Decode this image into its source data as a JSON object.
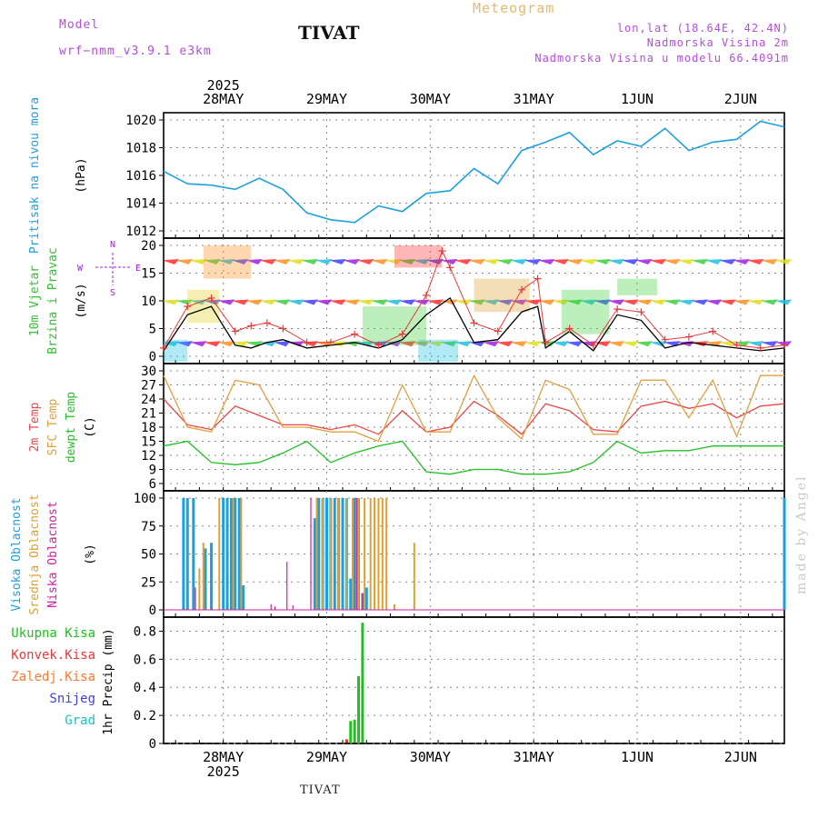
{
  "header": {
    "model_label": "Model",
    "model_name": "wrf−nmm_v3.9.1  e3km",
    "title": "TIVAT",
    "meteogram": "Meteogram",
    "lonlat": "lon,lat (18.64E, 42.4N)",
    "altitude": "Nadmorska Visina 2m",
    "model_altitude": "Nadmorska Visina u modelu 66.4091m"
  },
  "footer": {
    "station": "TIVAT",
    "watermark": "made by Angel"
  },
  "colors": {
    "pressure": "#1ea0e0",
    "wind_speed": "#000000",
    "wind_gust": "#e83a3a",
    "temp2m": "#e84848",
    "sfc_temp": "#e0a040",
    "dewpt": "#20c020",
    "high_cloud": "#1aa0e0",
    "mid_cloud": "#e0a030",
    "low_cloud": "#d020a0",
    "precip_total": "#20c020",
    "precip_conv": "#e83a3a",
    "precip_frz": "#ff7a30",
    "precip_snow": "#4040e0",
    "precip_grad": "#20c0c0"
  },
  "chart_data": [
    {
      "type": "line",
      "id": "pressure",
      "ylabel": "Pritisak na nivou mora",
      "unit": "(hPa)",
      "ylim": [
        1012,
        1020
      ],
      "yticks": [
        "1012",
        "1014",
        "1016",
        "1018",
        "1020"
      ],
      "x_top_labels": [
        "28MAY",
        "29MAY",
        "30MAY",
        "31MAY",
        "1JUN",
        "2JUN"
      ],
      "year": "2025",
      "x": [
        0,
        6,
        12,
        18,
        24,
        30,
        36,
        42,
        48,
        54,
        60,
        66,
        72,
        78,
        84,
        90,
        96,
        102,
        108,
        114,
        120,
        126,
        132,
        138,
        144,
        150,
        156
      ],
      "values": [
        1016.3,
        1015.4,
        1015.3,
        1015.0,
        1015.8,
        1015.0,
        1013.3,
        1012.8,
        1012.6,
        1013.8,
        1013.4,
        1014.7,
        1014.9,
        1016.5,
        1015.4,
        1017.8,
        1018.4,
        1019.1,
        1017.5,
        1018.5,
        1018.1,
        1019.4,
        1017.8,
        1018.4,
        1018.6,
        1019.9,
        1019.5
      ]
    },
    {
      "type": "line",
      "id": "wind",
      "ylabel": "10m Vjetar",
      "ylabel2": "Brzina i Pravac",
      "unit": "(m/s)",
      "ylim": [
        0,
        20
      ],
      "yticks": [
        "0",
        "5",
        "10",
        "15",
        "20"
      ],
      "compass": [
        "N",
        "E",
        "S",
        "W"
      ],
      "series": [
        {
          "name": "speed",
          "x": [
            0,
            6,
            12,
            18,
            22,
            26,
            30,
            36,
            42,
            48,
            54,
            60,
            66,
            72,
            78,
            84,
            90,
            94,
            96,
            102,
            108,
            114,
            120,
            126,
            132,
            138,
            144,
            150,
            156
          ],
          "values": [
            1.0,
            7.5,
            9.0,
            2.0,
            1.5,
            2.5,
            3.0,
            1.5,
            2.0,
            2.5,
            1.5,
            3.0,
            7.5,
            10.5,
            2.5,
            3.0,
            8.0,
            9.0,
            1.5,
            4.5,
            1.0,
            7.5,
            6.5,
            1.5,
            2.5,
            2.0,
            1.5,
            1.0,
            1.5
          ]
        },
        {
          "name": "gust",
          "x": [
            0,
            6,
            12,
            18,
            22,
            26,
            30,
            36,
            42,
            48,
            54,
            60,
            66,
            70,
            72,
            78,
            84,
            90,
            94,
            96,
            102,
            108,
            114,
            120,
            126,
            132,
            138,
            144,
            150,
            156
          ],
          "values": [
            1.5,
            9.0,
            10.5,
            4.5,
            5.5,
            6.0,
            5.0,
            2.5,
            2.5,
            4.0,
            2.0,
            4.0,
            11.0,
            19.0,
            16.0,
            6.0,
            4.5,
            12.0,
            14.0,
            2.5,
            5.0,
            2.0,
            8.5,
            8.0,
            3.0,
            3.5,
            4.5,
            2.0,
            1.5,
            2.0
          ]
        }
      ]
    },
    {
      "type": "line",
      "id": "temperature",
      "ylabel": "2m Temp",
      "ylabel2": "SFC Temp",
      "ylabel3": "dewpt Temp",
      "unit": "(C)",
      "ylim": [
        6,
        30
      ],
      "yticks": [
        "6",
        "9",
        "12",
        "15",
        "18",
        "21",
        "24",
        "27",
        "30"
      ],
      "series": [
        {
          "name": "2m Temp",
          "x": [
            0,
            6,
            12,
            18,
            24,
            30,
            36,
            42,
            48,
            54,
            60,
            66,
            72,
            78,
            84,
            90,
            96,
            102,
            108,
            114,
            120,
            126,
            132,
            138,
            144,
            150,
            156
          ],
          "values": [
            24,
            18.5,
            17.5,
            22.5,
            20.5,
            18.5,
            18.5,
            17.5,
            18.5,
            16.5,
            21.5,
            17,
            18,
            23.5,
            20.5,
            16.5,
            23,
            21.5,
            17.5,
            17,
            22.5,
            23.5,
            22,
            23,
            20,
            22.5,
            23
          ]
        },
        {
          "name": "SFC Temp",
          "x": [
            0,
            6,
            12,
            18,
            24,
            30,
            36,
            42,
            48,
            54,
            60,
            66,
            72,
            78,
            84,
            90,
            96,
            102,
            108,
            114,
            120,
            126,
            132,
            138,
            144,
            150,
            156
          ],
          "values": [
            29,
            18,
            17,
            28,
            27,
            18,
            18,
            17,
            17,
            15,
            27,
            17,
            17,
            29,
            20,
            15.5,
            28,
            26,
            16.5,
            16.5,
            28,
            28,
            20,
            28,
            16,
            29,
            29
          ]
        },
        {
          "name": "dewpt Temp",
          "x": [
            0,
            6,
            12,
            18,
            24,
            30,
            36,
            42,
            48,
            54,
            60,
            66,
            72,
            78,
            84,
            90,
            96,
            102,
            108,
            114,
            120,
            126,
            132,
            138,
            144,
            150,
            156
          ],
          "values": [
            14,
            15,
            10.5,
            10,
            10.5,
            12.5,
            15,
            10.5,
            12.5,
            14,
            15,
            8.5,
            8,
            9,
            9,
            8,
            8,
            8.5,
            10.5,
            15,
            12.5,
            13,
            13,
            14,
            14,
            14,
            14
          ]
        }
      ]
    },
    {
      "type": "bar",
      "id": "clouds",
      "ylabel": "Visoka Oblacnost",
      "ylabel2": "Srednja Oblacnost",
      "ylabel3": "Niska Oblacnost",
      "unit": "(%)",
      "ylim": [
        0,
        100
      ],
      "yticks": [
        "0",
        "25",
        "50",
        "75",
        "100"
      ],
      "series": [
        {
          "name": "high",
          "x": [
            5,
            6,
            7.5,
            10.5,
            12,
            15,
            16,
            17,
            18,
            19,
            20,
            38,
            39,
            40,
            41,
            42,
            43,
            44,
            45,
            46,
            47,
            48,
            49,
            50,
            51,
            156
          ],
          "values": [
            100,
            100,
            100,
            55,
            60,
            100,
            100,
            100,
            100,
            100,
            22,
            82,
            100,
            100,
            100,
            100,
            100,
            100,
            100,
            100,
            28,
            100,
            100,
            15,
            20,
            100
          ]
        },
        {
          "name": "mid",
          "x": [
            9,
            10,
            14,
            17.5,
            19.5,
            38.5,
            40,
            42,
            44,
            46,
            47.5,
            49,
            50.5,
            52,
            53,
            54,
            55,
            56,
            58,
            63,
            67
          ],
          "values": [
            37,
            60,
            100,
            100,
            100,
            100,
            100,
            100,
            100,
            100,
            100,
            100,
            100,
            100,
            100,
            100,
            100,
            100,
            5,
            60,
            0
          ]
        },
        {
          "name": "low",
          "x": [
            8,
            27,
            28,
            31,
            32.5,
            37,
            48.5,
            50
          ],
          "values": [
            20,
            5,
            3,
            43,
            4,
            100,
            100,
            15
          ]
        }
      ]
    },
    {
      "type": "bar",
      "id": "precip",
      "ylabel": "1hr Precip (mm)",
      "ylim": [
        0,
        0.9
      ],
      "yticks": [
        "0",
        "0.2",
        "0.4",
        "0.6",
        "0.8"
      ],
      "x_bottom_labels": [
        "28MAY",
        "29MAY",
        "30MAY",
        "31MAY",
        "1JUN",
        "2JUN"
      ],
      "year": "2025",
      "legend": [
        "Ukupna Kisa",
        "Konvek.Kisa",
        "Zaledj.Kisa",
        "Snijeg",
        "Grad"
      ],
      "series": [
        {
          "name": "Ukupna Kisa",
          "x": [
            46,
            47,
            48,
            49,
            50
          ],
          "values": [
            0.02,
            0.16,
            0.17,
            0.48,
            0.86
          ]
        },
        {
          "name": "Konvek.Kisa",
          "x": [
            46
          ],
          "values": [
            0.03
          ]
        }
      ]
    }
  ]
}
